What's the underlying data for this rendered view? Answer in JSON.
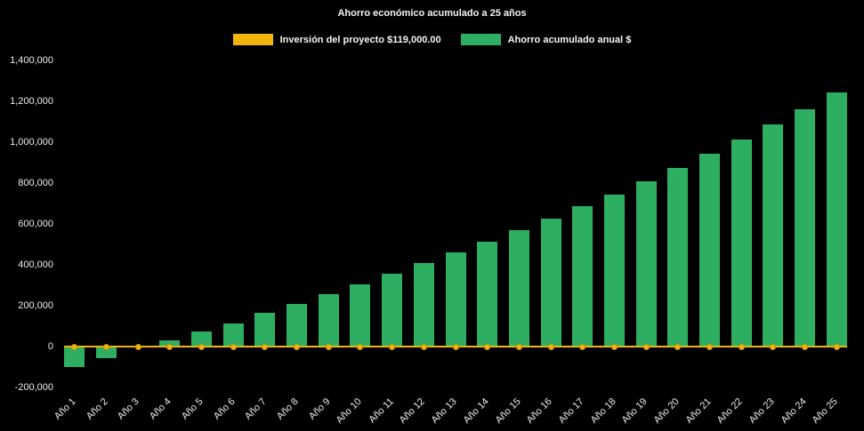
{
  "title": "Ahorro económico acumulado a 25 años",
  "legend": {
    "items": [
      {
        "label": "Inversión del proyecto $119,000.00",
        "color": "#F2B50D"
      },
      {
        "label": "Ahorro acumulado anual $",
        "color": "#2EAE60"
      }
    ]
  },
  "chart_data": {
    "type": "bar",
    "title": "Ahorro económico acumulado a 25 años",
    "categories": [
      "Año 1",
      "Año 2",
      "Año 3",
      "Año 4",
      "Año 5",
      "Año 6",
      "Año 7",
      "Año 8",
      "Año 9",
      "Año 10",
      "Año 11",
      "Año 12",
      "Año 13",
      "Año 14",
      "Año 15",
      "Año 16",
      "Año 17",
      "Año 18",
      "Año 19",
      "Año 20",
      "Año 21",
      "Año 22",
      "Año 23",
      "Año 24",
      "Año 25"
    ],
    "series": [
      {
        "name": "Ahorro acumulado anual $",
        "type": "bar",
        "color": "#2EAE60",
        "values": [
          -100000,
          -55000,
          -5000,
          30000,
          75000,
          115000,
          165000,
          210000,
          255000,
          305000,
          355000,
          410000,
          460000,
          515000,
          570000,
          625000,
          685000,
          745000,
          810000,
          875000,
          945000,
          1015000,
          1085000,
          1160000,
          1245000
        ]
      },
      {
        "name": "Inversión del proyecto $119,000.00",
        "type": "line",
        "color": "#F2B50D",
        "marker": "circle",
        "marker_border_color": "#C9920A",
        "constant_value": 0,
        "note": "horizontal yellow line with round markers drawn at the zero baseline across all 25 years"
      }
    ],
    "ylim": [
      -200000,
      1400000
    ],
    "y_ticks": [
      -200000,
      0,
      200000,
      400000,
      600000,
      800000,
      1000000,
      1200000,
      1400000
    ],
    "grid": false,
    "legend_position": "top",
    "background_color": "#000000",
    "text_color": "#FFFFFF",
    "x_label_rotation_deg": -45
  }
}
